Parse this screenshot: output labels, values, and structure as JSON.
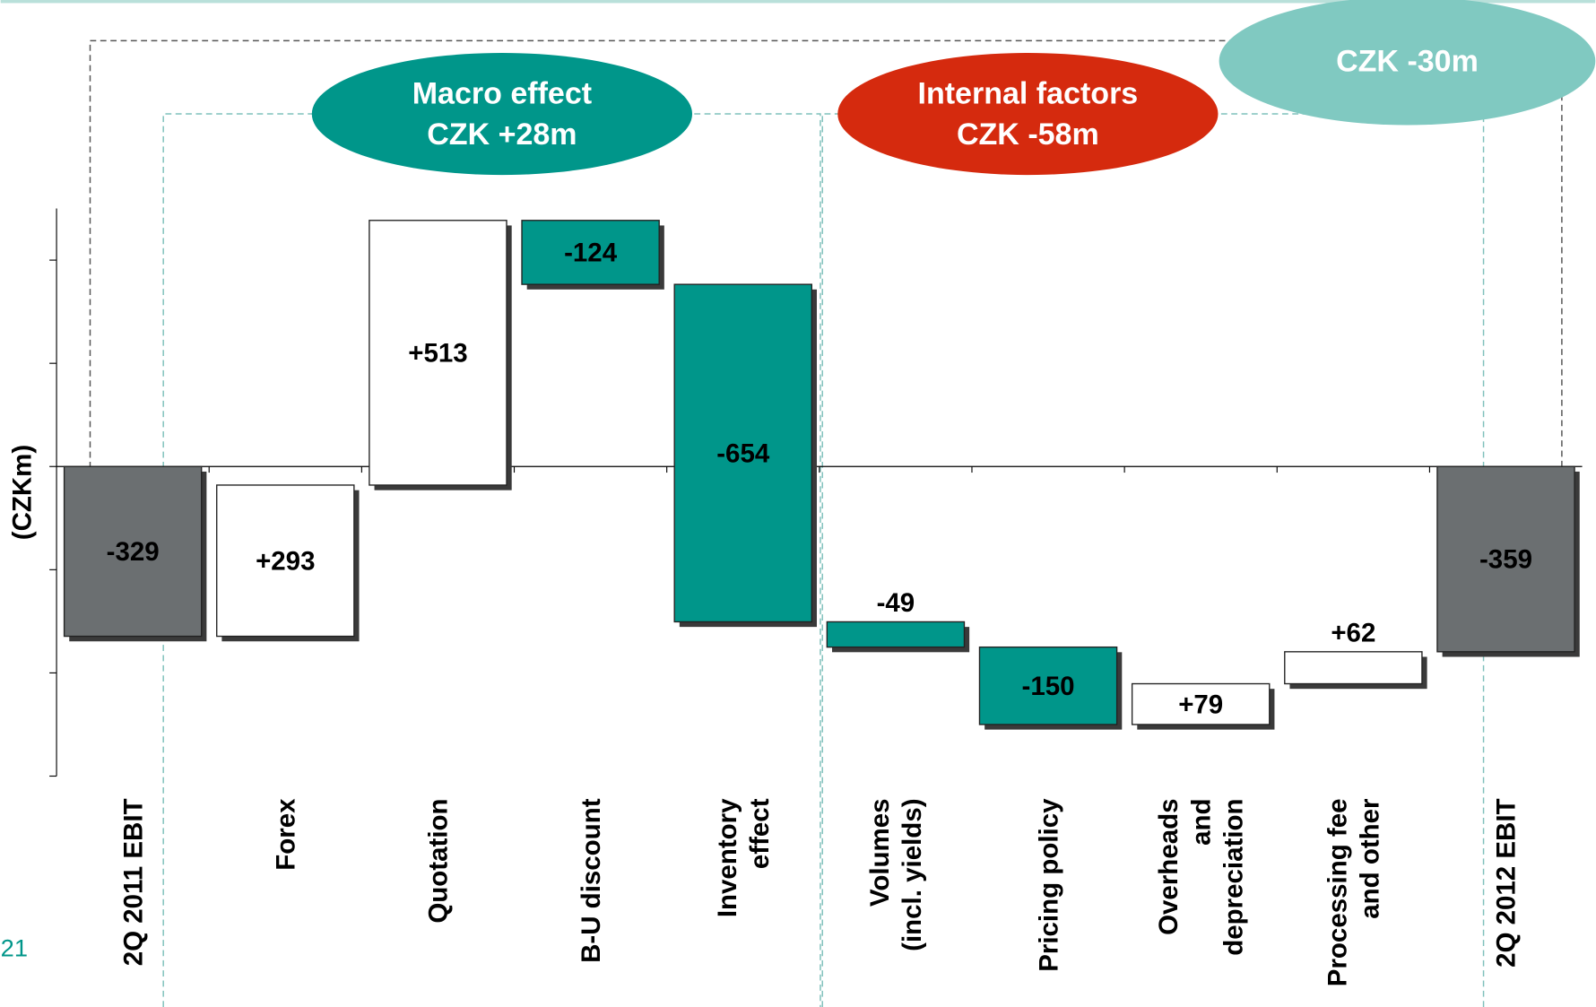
{
  "chart_data": {
    "type": "waterfall",
    "y_label": "(CZKm)",
    "categories": [
      [
        "2Q 2011 EBIT"
      ],
      [
        "Forex"
      ],
      [
        "Quotation"
      ],
      [
        "B-U discount"
      ],
      [
        "Inventory",
        "effect"
      ],
      [
        "Volumes",
        "(incl. yields)"
      ],
      [
        "Pricing policy"
      ],
      [
        "Overheads",
        "and",
        "depreciation"
      ],
      [
        "Processing fee",
        "and other"
      ],
      [
        "2Q 2012 EBIT"
      ]
    ],
    "values": [
      -329,
      293,
      513,
      -124,
      -654,
      -49,
      -150,
      79,
      62,
      -359
    ],
    "value_labels": [
      "-329",
      "+293",
      "+513",
      "-124",
      "-654",
      "-49",
      "-150",
      "+79",
      "+62",
      "-359"
    ],
    "is_total": [
      true,
      false,
      false,
      false,
      false,
      false,
      false,
      false,
      false,
      true
    ],
    "colors": {
      "total": "#6b6f71",
      "increase": "#ffffff",
      "decrease": "#00968a"
    },
    "ylim": [
      -600,
      500
    ],
    "yticks": [
      -600,
      -400,
      -200,
      0,
      200,
      400
    ],
    "annotations": [
      {
        "lines": [
          "Macro effect",
          "CZK +28m"
        ],
        "color": "#00968a"
      },
      {
        "lines": [
          "Internal factors",
          "CZK -58m"
        ],
        "color": "#d52a0e"
      },
      {
        "lines": [
          "CZK -30m"
        ],
        "color": "#80c9c1"
      }
    ],
    "page_number": "21"
  }
}
